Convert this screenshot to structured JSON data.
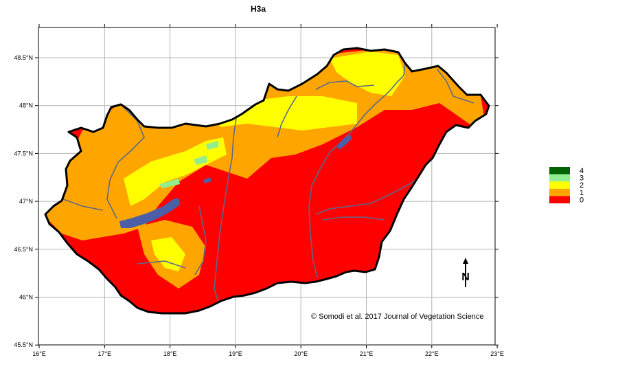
{
  "title": "H3a",
  "x_ticks": [
    "16°E",
    "17°E",
    "18°E",
    "19°E",
    "20°E",
    "21°E",
    "22°E",
    "23°E"
  ],
  "y_ticks": [
    "48.5°N",
    "48°N",
    "47.5°N",
    "47°N",
    "46.5°N",
    "46°N",
    "45.5°N"
  ],
  "legend": [
    {
      "label": "4",
      "color": "#006400"
    },
    {
      "label": "3",
      "color": "#90ee90"
    },
    {
      "label": "2",
      "color": "#ffff00"
    },
    {
      "label": "1",
      "color": "#ffa500"
    },
    {
      "label": "0",
      "color": "#ff0000"
    }
  ],
  "credit": "© Somodi et al. 2017 Journal of Vegetation Science",
  "north_arrow": "N",
  "colors": {
    "class0": "#ff0000",
    "class1": "#ffa500",
    "class2": "#ffff00",
    "class3": "#90ee90",
    "class4": "#006400",
    "water": "#4a5fa8",
    "rivers": "#5a6a8a",
    "border": "#000000",
    "grid": "#b4b4b4"
  }
}
